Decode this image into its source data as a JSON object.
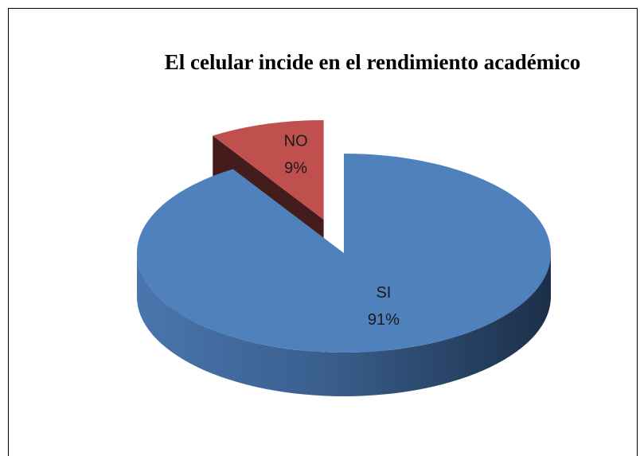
{
  "chart_data": {
    "type": "pie3d",
    "title": "El celular incide en el rendimiento académico",
    "categories": [
      "SI",
      "NO"
    ],
    "values": [
      91,
      9
    ],
    "value_labels": [
      "91%",
      "9%"
    ],
    "colors": [
      "#4f81bd",
      "#c0504d"
    ],
    "exploded": [
      false,
      true
    ]
  }
}
